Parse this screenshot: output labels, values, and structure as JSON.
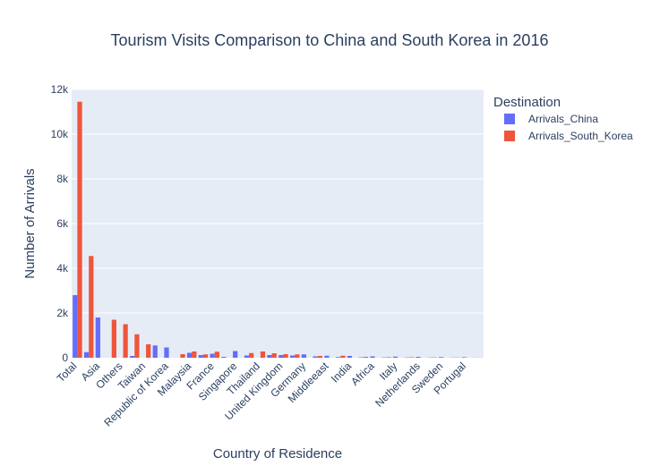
{
  "chart_data": {
    "type": "bar",
    "title": "Tourism Visits Comparison to China and South Korea in 2016",
    "xlabel": "Country of Residence",
    "ylabel": "Number of Arrivals",
    "ylim": [
      0,
      12000
    ],
    "yticks": [
      0,
      2000,
      4000,
      6000,
      8000,
      10000,
      12000
    ],
    "ytick_labels": [
      "0",
      "2k",
      "4k",
      "6k",
      "8k",
      "10k",
      "12k"
    ],
    "grid": true,
    "legend_title": "Destination",
    "legend_position": "top-right",
    "categories": [
      "Total",
      "",
      "Asia",
      "",
      "Others",
      "",
      "Taiwan",
      "",
      "Republic of Korea",
      "",
      "Malaysia",
      "",
      "France",
      "",
      "Singapore",
      "",
      "Thailand",
      "",
      "United Kingdom",
      "",
      "Germany",
      "",
      "Middleeast",
      "",
      "India",
      "",
      "Africa",
      "",
      "Italy",
      "",
      "Netherlands",
      "",
      "Sweden",
      "",
      "Portugal",
      ""
    ],
    "series": [
      {
        "name": "Arrivals_China",
        "color": "#636efa",
        "values": [
          2800,
          250,
          1800,
          0,
          0,
          80,
          0,
          550,
          460,
          0,
          220,
          120,
          180,
          40,
          300,
          100,
          0,
          120,
          120,
          100,
          150,
          60,
          90,
          30,
          80,
          20,
          60,
          15,
          50,
          15,
          40,
          10,
          30,
          8,
          25,
          5
        ]
      },
      {
        "name": "Arrivals_South_Korea",
        "color": "#ef553b",
        "values": [
          11450,
          4550,
          0,
          1700,
          1500,
          1050,
          600,
          0,
          0,
          160,
          280,
          150,
          270,
          0,
          0,
          210,
          280,
          200,
          160,
          150,
          0,
          80,
          0,
          90,
          0,
          40,
          0,
          25,
          0,
          20,
          0,
          15,
          0,
          10,
          0,
          5
        ]
      }
    ]
  }
}
